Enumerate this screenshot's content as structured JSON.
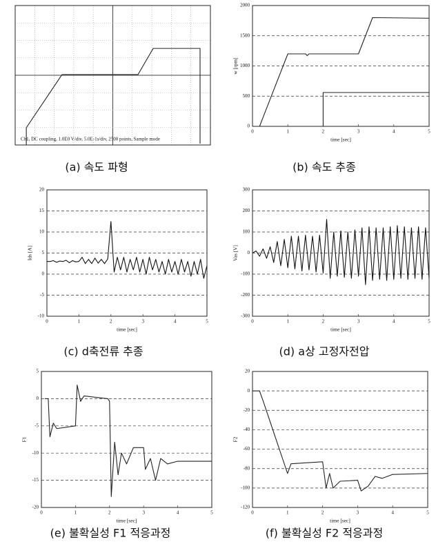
{
  "chart_data": [
    {
      "type": "line",
      "caption": "(a) 속도 파형",
      "annotation": "Ch1, DC coupling, 1.0E0 V/div, 5.0E-1s/div, 2500 points, Sample mode",
      "xlim": [
        0,
        10
      ],
      "ylim": [
        0,
        8
      ],
      "grid_divisions": [
        10,
        8
      ],
      "series": [
        {
          "color": "#222",
          "x": [
            0.57,
            0.57,
            2.4,
            6.29,
            7.07,
            9.47,
            9.47
          ],
          "values": [
            0,
            0.99,
            4.04,
            4.04,
            5.54,
            5.54,
            0.08
          ]
        }
      ]
    },
    {
      "type": "line",
      "caption": "(b) 속도 추종",
      "xlabel": "time [sec]",
      "ylabel": "w [rpm]",
      "xlim": [
        0,
        5
      ],
      "xticks": [
        0,
        1,
        2,
        3,
        4,
        5
      ],
      "ylim": [
        0,
        2000
      ],
      "yticks": [
        0,
        500,
        1000,
        1500,
        2000
      ],
      "grid": true,
      "series": [
        {
          "color": "#222",
          "x": [
            0,
            0.2,
            1.0,
            1.5,
            1.55,
            1.6,
            3.0,
            3.4,
            5.0
          ],
          "values": [
            0,
            0,
            1200,
            1200,
            1170,
            1200,
            1200,
            1800,
            1790
          ]
        },
        {
          "color": "#222",
          "x": [
            2.0,
            2.0,
            5.0
          ],
          "values": [
            0,
            560,
            560
          ]
        }
      ]
    },
    {
      "type": "line",
      "caption": "(c) d축전류 추종",
      "xlabel": "time [sec]",
      "ylabel": "Ids [A]",
      "xlim": [
        0,
        5
      ],
      "xticks": [
        0,
        1,
        2,
        3,
        4,
        5
      ],
      "ylim": [
        -10,
        20
      ],
      "yticks": [
        -10,
        -5,
        0,
        5,
        10,
        15,
        20
      ],
      "grid": true,
      "series": [
        {
          "color": "#111",
          "x": [
            0,
            0.1,
            0.2,
            0.3,
            0.4,
            0.5,
            0.6,
            0.7,
            0.8,
            0.9,
            1,
            1.1,
            1.2,
            1.3,
            1.4,
            1.5,
            1.6,
            1.7,
            1.8,
            1.9,
            2,
            2.1,
            2.2,
            2.3,
            2.4,
            2.5,
            2.6,
            2.7,
            2.8,
            2.9,
            3,
            3.1,
            3.2,
            3.3,
            3.4,
            3.5,
            3.6,
            3.7,
            3.8,
            3.9,
            4,
            4.1,
            4.2,
            4.3,
            4.4,
            4.5,
            4.6,
            4.7,
            4.8,
            4.9,
            5
          ],
          "values": [
            3,
            3,
            3.2,
            2.8,
            3.1,
            3,
            3.3,
            2.7,
            3.2,
            2.9,
            3,
            4,
            2.5,
            3.5,
            2.5,
            3.8,
            2.6,
            3.5,
            2.5,
            3.6,
            12.5,
            0.5,
            4,
            1,
            4,
            0.5,
            3.5,
            1,
            4,
            0.5,
            3.5,
            0,
            4,
            1,
            3.5,
            0.5,
            3,
            0,
            3.5,
            0.5,
            3,
            0,
            3.5,
            0.5,
            3,
            -0.5,
            3,
            0,
            3.5,
            -1,
            2
          ]
        }
      ]
    },
    {
      "type": "line",
      "caption": "(d) a상 고정자전압",
      "xlabel": "time [sec]",
      "ylabel": "Vas [V]",
      "xlim": [
        0,
        5
      ],
      "xticks": [
        0,
        1,
        2,
        3,
        4,
        5
      ],
      "ylim": [
        -300,
        300
      ],
      "yticks": [
        -300,
        -200,
        -100,
        0,
        100,
        200,
        300
      ],
      "grid": true,
      "series": [
        {
          "color": "#111",
          "x": [
            0,
            0.1,
            0.2,
            0.3,
            0.4,
            0.5,
            0.6,
            0.7,
            0.8,
            0.9,
            1,
            1.1,
            1.2,
            1.3,
            1.4,
            1.5,
            1.6,
            1.7,
            1.8,
            1.9,
            2,
            2.1,
            2.2,
            2.3,
            2.4,
            2.5,
            2.6,
            2.7,
            2.8,
            2.9,
            3,
            3.1,
            3.2,
            3.3,
            3.4,
            3.5,
            3.6,
            3.7,
            3.8,
            3.9,
            4,
            4.1,
            4.2,
            4.3,
            4.4,
            4.5,
            4.6,
            4.7,
            4.8,
            4.9,
            5
          ],
          "values": [
            0,
            10,
            -15,
            20,
            -25,
            30,
            -45,
            55,
            -60,
            65,
            -70,
            80,
            -75,
            80,
            -85,
            85,
            -80,
            80,
            -90,
            85,
            -95,
            160,
            -120,
            100,
            -110,
            105,
            -115,
            100,
            -120,
            110,
            -110,
            120,
            -150,
            125,
            -130,
            120,
            -125,
            120,
            -130,
            125,
            -125,
            130,
            -120,
            125,
            -125,
            120,
            -120,
            125,
            -125,
            120,
            -120
          ]
        }
      ]
    },
    {
      "type": "line",
      "caption": "(e) 불확실성 F1 적응과정",
      "xlabel": "time [sec]",
      "ylabel": "F1",
      "xlim": [
        0,
        5
      ],
      "xticks": [
        0,
        1,
        2,
        3,
        4,
        5
      ],
      "ylim": [
        -20,
        5
      ],
      "yticks": [
        -20,
        -15,
        -10,
        -5,
        0,
        5
      ],
      "grid": true,
      "series": [
        {
          "color": "#222",
          "x": [
            0.1,
            0.2,
            0.25,
            0.35,
            0.45,
            1.0,
            1.05,
            1.15,
            1.25,
            1.95,
            2.0,
            2.05,
            2.15,
            2.25,
            2.35,
            2.5,
            2.7,
            3.0,
            3.05,
            3.2,
            3.35,
            3.5,
            3.7,
            4.0,
            5.0
          ],
          "values": [
            0,
            0,
            -7,
            -4.5,
            -5.5,
            -5,
            2.5,
            -0.5,
            0.5,
            0,
            -0.5,
            -18,
            -8,
            -14,
            -10,
            -12,
            -9,
            -9,
            -13,
            -11,
            -15,
            -11,
            -12,
            -11.5,
            -11.5
          ]
        }
      ]
    },
    {
      "type": "line",
      "caption": "(f) 불확실성 F2 적응과정",
      "xlabel": "time [sec]",
      "ylabel": "F2",
      "xlim": [
        0,
        5
      ],
      "xticks": [
        0,
        1,
        2,
        3,
        4,
        5
      ],
      "ylim": [
        -120,
        20
      ],
      "yticks": [
        -120,
        -100,
        -80,
        -60,
        -40,
        -20,
        0,
        20
      ],
      "grid": true,
      "series": [
        {
          "color": "#222",
          "x": [
            0,
            0.2,
            0.3,
            1.0,
            1.1,
            2.0,
            2.1,
            2.2,
            2.3,
            2.5,
            3.0,
            3.1,
            3.3,
            3.5,
            3.7,
            4.0,
            5.0
          ],
          "values": [
            0,
            0,
            -10,
            -85,
            -75,
            -73,
            -100,
            -85,
            -100,
            -93,
            -92,
            -103,
            -98,
            -88,
            -90,
            -86,
            -85
          ]
        }
      ]
    }
  ]
}
